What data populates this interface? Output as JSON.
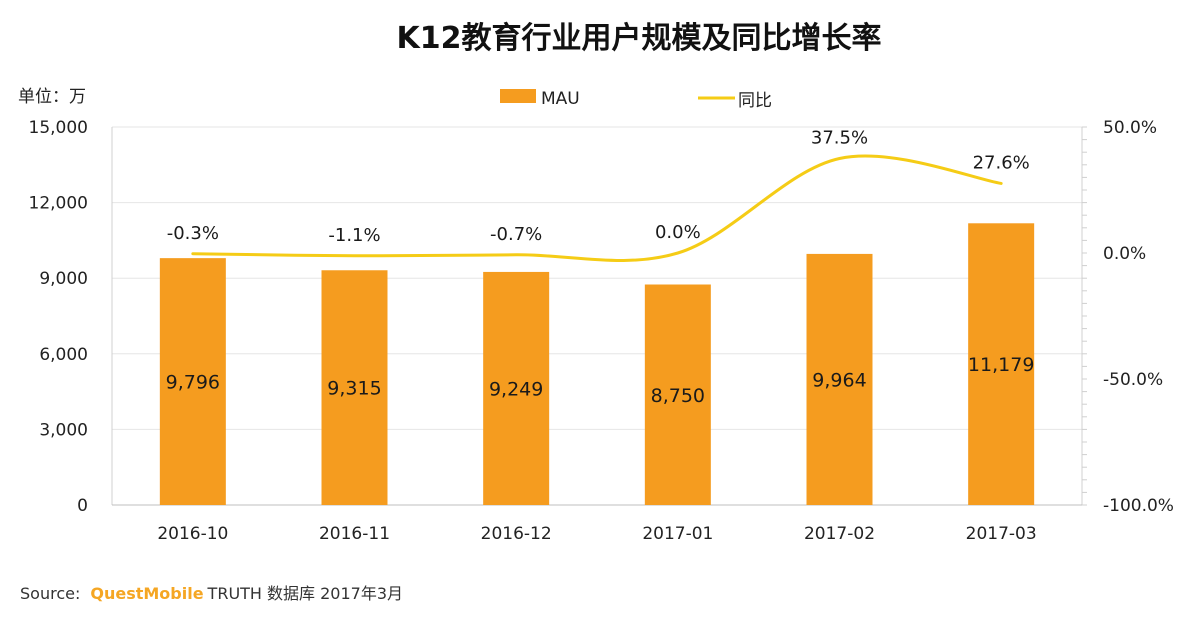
{
  "chart_data": {
    "type": "bar+line",
    "title": "K12教育行业用户规模及同比增长率",
    "unit_label": "单位：万",
    "categories": [
      "2016-10",
      "2016-11",
      "2016-12",
      "2017-01",
      "2017-02",
      "2017-03"
    ],
    "series": [
      {
        "name": "MAU",
        "type": "bar",
        "axis": "left",
        "values": [
          9796,
          9315,
          9249,
          8750,
          9964,
          11179
        ],
        "labels": [
          "9,796",
          "9,315",
          "9,249",
          "8,750",
          "9,964",
          "11,179"
        ]
      },
      {
        "name": "同比",
        "type": "line",
        "axis": "right",
        "values": [
          -0.3,
          -1.1,
          -0.7,
          0.0,
          37.5,
          27.6
        ],
        "labels": [
          "-0.3%",
          "-1.1%",
          "-0.7%",
          "0.0%",
          "37.5%",
          "27.6%"
        ]
      }
    ],
    "left_axis": {
      "range": [
        0,
        15000
      ],
      "ticks": [
        0,
        3000,
        6000,
        9000,
        12000,
        15000
      ],
      "tick_labels": [
        "0",
        "3,000",
        "6,000",
        "9,000",
        "12,000",
        "15,000"
      ]
    },
    "right_axis": {
      "range": [
        -100,
        50
      ],
      "ticks": [
        -100,
        -50,
        0,
        50
      ],
      "tick_labels": [
        "-100.0%",
        "-50.0%",
        "0.0%",
        "50.0%"
      ]
    },
    "legend_position": "top-center",
    "grid": "horizontal"
  },
  "colors": {
    "bar": "#f59c1f",
    "line": "#f5cc16",
    "grid": "#e6e6e6",
    "axis": "#d0d0d0",
    "brand": "#f5a623"
  },
  "source": {
    "prefix": "Source:",
    "brand": "QuestMobile",
    "rest": "TRUTH 数据库 2017年3月"
  }
}
